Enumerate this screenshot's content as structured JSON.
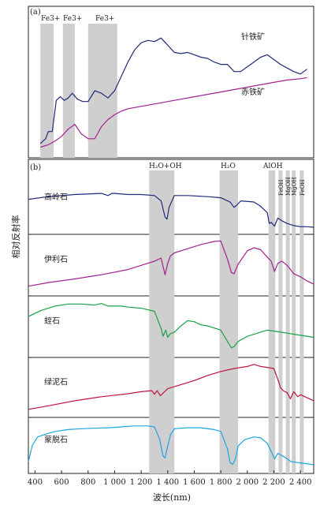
{
  "chart_data": {
    "type": "line",
    "ylabel": "相对反射率",
    "xlabel": "波长(nm)",
    "xlim": [
      350,
      2500
    ],
    "x_ticks": [
      "400",
      "600",
      "800",
      "1 000",
      "1 200",
      "1 400",
      "1 600",
      "1 800",
      "2 000",
      "2 200",
      "2 400"
    ],
    "x_tick_values": [
      400,
      600,
      800,
      1000,
      1200,
      1400,
      1600,
      1800,
      2000,
      2200,
      2400
    ],
    "grid": false,
    "panels": [
      {
        "label": "(a)",
        "bands": [
          {
            "label": "Fe3+",
            "range": [
              440,
              540
            ]
          },
          {
            "label": "Fe3+",
            "range": [
              610,
              700
            ]
          },
          {
            "label": "Fe3+",
            "range": [
              800,
              1020
            ]
          }
        ],
        "series": [
          {
            "name": "针铁矿",
            "color": "#1f2a7a",
            "x": [
              440,
              480,
              500,
              530,
              560,
              590,
              620,
              650,
              680,
              720,
              760,
              800,
              850,
              900,
              950,
              1000,
              1050,
              1100,
              1150,
              1200,
              1250,
              1300,
              1350,
              1400,
              1450,
              1500,
              1550,
              1600,
              1650,
              1700,
              1750,
              1800,
              1850,
              1900,
              1950,
              2000,
              2050,
              2100,
              2150,
              2200,
              2250,
              2300,
              2350,
              2400,
              2450
            ],
            "y": [
              0.04,
              0.08,
              0.14,
              0.14,
              0.4,
              0.43,
              0.4,
              0.42,
              0.46,
              0.41,
              0.39,
              0.39,
              0.48,
              0.46,
              0.42,
              0.48,
              0.6,
              0.72,
              0.82,
              0.88,
              0.9,
              0.89,
              0.92,
              0.86,
              0.8,
              0.79,
              0.8,
              0.78,
              0.76,
              0.75,
              0.72,
              0.7,
              0.7,
              0.64,
              0.64,
              0.68,
              0.72,
              0.76,
              0.78,
              0.74,
              0.7,
              0.67,
              0.64,
              0.62,
              0.66
            ]
          },
          {
            "name": "赤铁矿",
            "color": "#a3228f",
            "x": [
              440,
              500,
              550,
              600,
              650,
              700,
              750,
              800,
              850,
              900,
              950,
              1000,
              1050,
              1100,
              1150,
              1200,
              1300,
              1400,
              1500,
              1600,
              1700,
              1800,
              1900,
              2000,
              2100,
              2200,
              2300,
              2400,
              2450
            ],
            "y": [
              0.01,
              0.03,
              0.06,
              0.1,
              0.16,
              0.2,
              0.12,
              0.08,
              0.08,
              0.18,
              0.24,
              0.28,
              0.31,
              0.33,
              0.34,
              0.35,
              0.37,
              0.39,
              0.41,
              0.43,
              0.45,
              0.47,
              0.49,
              0.51,
              0.53,
              0.55,
              0.57,
              0.58,
              0.59
            ]
          }
        ]
      },
      {
        "label": "(b)",
        "bands": [
          {
            "label": "H2O+OH",
            "range": [
              1260,
              1450
            ]
          },
          {
            "label": "H2O",
            "range": [
              1790,
              1930
            ]
          },
          {
            "label": "",
            "range": [
              2160,
              2210
            ]
          },
          {
            "label": "",
            "range": [
              2235,
              2265
            ]
          },
          {
            "label": "",
            "range": [
              2290,
              2320
            ]
          },
          {
            "label": "",
            "range": [
              2335,
              2365
            ]
          },
          {
            "label": "",
            "range": [
              2395,
              2425
            ]
          }
        ],
        "aloh_label": "AlOH",
        "sub_band_labels": [
          "FeOH",
          "MgOH",
          "MgOH",
          "FeOH"
        ],
        "h2o_oh_text": "H₂O+OH",
        "h2o_text": "H₂O",
        "minerals": [
          {
            "name": "高岭石",
            "color": "#1f2a7a",
            "x": [
              350,
              500,
              700,
              900,
              950,
              980,
              1000,
              1100,
              1200,
              1300,
              1350,
              1380,
              1395,
              1410,
              1450,
              1550,
              1700,
              1800,
              1870,
              1900,
              1920,
              1950,
              2050,
              2100,
              2150,
              2165,
              2180,
              2205,
              2230,
              2260,
              2300,
              2350,
              2400,
              2450,
              2500
            ],
            "y": [
              0.55,
              0.6,
              0.64,
              0.66,
              0.62,
              0.66,
              0.66,
              0.64,
              0.64,
              0.62,
              0.52,
              0.22,
              0.18,
              0.4,
              0.62,
              0.62,
              0.6,
              0.58,
              0.5,
              0.4,
              0.44,
              0.52,
              0.5,
              0.42,
              0.3,
              0.1,
              0.12,
              0.05,
              0.2,
              0.15,
              0.1,
              0.06,
              0.04,
              0.04,
              0.03
            ]
          },
          {
            "name": "伊利石",
            "color": "#a3228f",
            "x": [
              350,
              500,
              700,
              900,
              1100,
              1200,
              1300,
              1350,
              1380,
              1400,
              1420,
              1450,
              1550,
              1650,
              1750,
              1800,
              1850,
              1880,
              1900,
              1930,
              2000,
              2050,
              2100,
              2150,
              2180,
              2205,
              2230,
              2260,
              2300,
              2350,
              2400,
              2450,
              2500
            ],
            "y": [
              0.08,
              0.15,
              0.22,
              0.3,
              0.4,
              0.48,
              0.56,
              0.62,
              0.3,
              0.52,
              0.66,
              0.72,
              0.8,
              0.88,
              0.94,
              0.95,
              0.6,
              0.34,
              0.32,
              0.5,
              0.76,
              0.82,
              0.78,
              0.64,
              0.56,
              0.36,
              0.52,
              0.56,
              0.48,
              0.32,
              0.26,
              0.18,
              0.12
            ]
          },
          {
            "name": "蛭石",
            "color": "#17a34a",
            "x": [
              350,
              450,
              550,
              650,
              750,
              850,
              900,
              950,
              1000,
              1050,
              1100,
              1200,
              1300,
              1350,
              1365,
              1385,
              1400,
              1420,
              1450,
              1500,
              1550,
              1600,
              1650,
              1700,
              1800,
              1850,
              1880,
              1900,
              1930,
              2000,
              2100,
              2150,
              2200,
              2300,
              2400,
              2500
            ],
            "y": [
              0.68,
              0.8,
              0.88,
              0.92,
              0.92,
              0.9,
              0.93,
              0.88,
              0.88,
              0.88,
              0.86,
              0.84,
              0.78,
              0.45,
              0.3,
              0.42,
              0.28,
              0.35,
              0.38,
              0.5,
              0.6,
              0.58,
              0.52,
              0.5,
              0.42,
              0.2,
              0.08,
              0.1,
              0.2,
              0.3,
              0.38,
              0.42,
              0.4,
              0.36,
              0.32,
              0.28
            ]
          },
          {
            "name": "绿泥石",
            "color": "#c0143c",
            "x": [
              350,
              500,
              700,
              900,
              1100,
              1200,
              1280,
              1300,
              1320,
              1345,
              1400,
              1500,
              1600,
              1700,
              1800,
              1900,
              2000,
              2050,
              2100,
              2200,
              2235,
              2250,
              2270,
              2300,
              2325,
              2350,
              2380,
              2400,
              2450,
              2500
            ],
            "y": [
              0.05,
              0.12,
              0.22,
              0.3,
              0.36,
              0.4,
              0.42,
              0.35,
              0.42,
              0.32,
              0.46,
              0.54,
              0.62,
              0.72,
              0.8,
              0.86,
              0.9,
              0.94,
              0.9,
              0.86,
              0.6,
              0.48,
              0.42,
              0.38,
              0.26,
              0.4,
              0.3,
              0.34,
              0.28,
              0.22
            ]
          },
          {
            "name": "蒙脱石",
            "color": "#1aa6e0",
            "x": [
              350,
              380,
              420,
              480,
              550,
              650,
              750,
              850,
              950,
              1050,
              1150,
              1250,
              1300,
              1340,
              1365,
              1380,
              1400,
              1420,
              1450,
              1550,
              1650,
              1750,
              1800,
              1850,
              1870,
              1890,
              1910,
              1930,
              1980,
              2050,
              2100,
              2150,
              2180,
              2205,
              2230,
              2280,
              2330,
              2380,
              2430,
              2480,
              2500
            ],
            "y": [
              0.12,
              0.48,
              0.66,
              0.72,
              0.78,
              0.82,
              0.84,
              0.85,
              0.86,
              0.88,
              0.9,
              0.9,
              0.88,
              0.6,
              0.24,
              0.2,
              0.46,
              0.7,
              0.84,
              0.86,
              0.86,
              0.82,
              0.78,
              0.4,
              0.1,
              0.06,
              0.18,
              0.46,
              0.6,
              0.66,
              0.64,
              0.52,
              0.34,
              0.18,
              0.3,
              0.22,
              0.12,
              0.1,
              0.08,
              0.06,
              0.05
            ]
          }
        ]
      }
    ]
  }
}
